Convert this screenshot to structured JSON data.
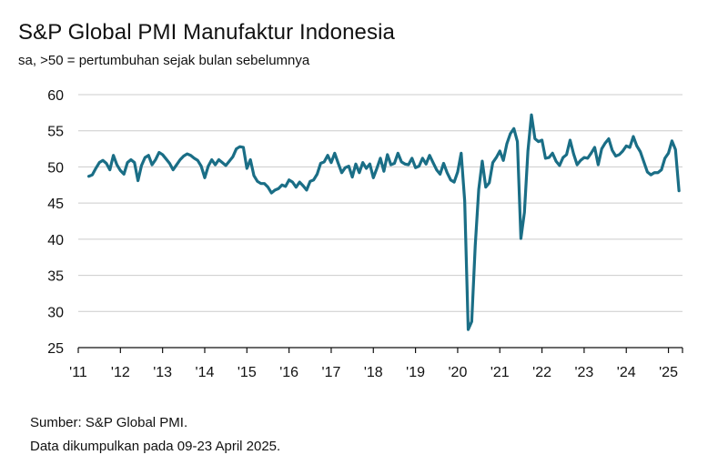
{
  "title": "S&P Global PMI Manufaktur Indonesia",
  "subtitle": "sa, >50 = pertumbuhan sejak bulan sebelumnya",
  "footer": {
    "source": "Sumber: S&P Global PMI.",
    "note": "Data dikumpulkan pada 09-23 April 2025."
  },
  "chart_data": {
    "type": "line",
    "title": "S&P Global PMI Manufaktur Indonesia",
    "subtitle": "sa, >50 = pertumbuhan sejak bulan sebelumnya",
    "xlabel": "",
    "ylabel": "",
    "ylim": [
      25,
      60
    ],
    "yticks": [
      25,
      30,
      35,
      40,
      45,
      50,
      55,
      60
    ],
    "xlim": [
      "2011-01",
      "2025-05"
    ],
    "xtick_labels": [
      "'11",
      "'12",
      "'13",
      "'14",
      "'15",
      "'16",
      "'17",
      "'18",
      "'19",
      "'20",
      "'21",
      "'22",
      "'23",
      "'24",
      "'25"
    ],
    "grid": "horizontal",
    "line_color": "#1a6e86",
    "series": [
      {
        "name": "",
        "x": [
          "2011-04",
          "2011-05",
          "2011-06",
          "2011-07",
          "2011-08",
          "2011-09",
          "2011-10",
          "2011-11",
          "2011-12",
          "2012-01",
          "2012-02",
          "2012-03",
          "2012-04",
          "2012-05",
          "2012-06",
          "2012-07",
          "2012-08",
          "2012-09",
          "2012-10",
          "2012-11",
          "2012-12",
          "2013-01",
          "2013-02",
          "2013-03",
          "2013-04",
          "2013-05",
          "2013-06",
          "2013-07",
          "2013-08",
          "2013-09",
          "2013-10",
          "2013-11",
          "2013-12",
          "2014-01",
          "2014-02",
          "2014-03",
          "2014-04",
          "2014-05",
          "2014-06",
          "2014-07",
          "2014-08",
          "2014-09",
          "2014-10",
          "2014-11",
          "2014-12",
          "2015-01",
          "2015-02",
          "2015-03",
          "2015-04",
          "2015-05",
          "2015-06",
          "2015-07",
          "2015-08",
          "2015-09",
          "2015-10",
          "2015-11",
          "2015-12",
          "2016-01",
          "2016-02",
          "2016-03",
          "2016-04",
          "2016-05",
          "2016-06",
          "2016-07",
          "2016-08",
          "2016-09",
          "2016-10",
          "2016-11",
          "2016-12",
          "2017-01",
          "2017-02",
          "2017-03",
          "2017-04",
          "2017-05",
          "2017-06",
          "2017-07",
          "2017-08",
          "2017-09",
          "2017-10",
          "2017-11",
          "2017-12",
          "2018-01",
          "2018-02",
          "2018-03",
          "2018-04",
          "2018-05",
          "2018-06",
          "2018-07",
          "2018-08",
          "2018-09",
          "2018-10",
          "2018-11",
          "2018-12",
          "2019-01",
          "2019-02",
          "2019-03",
          "2019-04",
          "2019-05",
          "2019-06",
          "2019-07",
          "2019-08",
          "2019-09",
          "2019-10",
          "2019-11",
          "2019-12",
          "2020-01",
          "2020-02",
          "2020-03",
          "2020-04",
          "2020-05",
          "2020-06",
          "2020-07",
          "2020-08",
          "2020-09",
          "2020-10",
          "2020-11",
          "2020-12",
          "2021-01",
          "2021-02",
          "2021-03",
          "2021-04",
          "2021-05",
          "2021-06",
          "2021-07",
          "2021-08",
          "2021-09",
          "2021-10",
          "2021-11",
          "2021-12",
          "2022-01",
          "2022-02",
          "2022-03",
          "2022-04",
          "2022-05",
          "2022-06",
          "2022-07",
          "2022-08",
          "2022-09",
          "2022-10",
          "2022-11",
          "2022-12",
          "2023-01",
          "2023-02",
          "2023-03",
          "2023-04",
          "2023-05",
          "2023-06",
          "2023-07",
          "2023-08",
          "2023-09",
          "2023-10",
          "2023-11",
          "2023-12",
          "2024-01",
          "2024-02",
          "2024-03",
          "2024-04",
          "2024-05",
          "2024-06",
          "2024-07",
          "2024-08",
          "2024-09",
          "2024-10",
          "2024-11",
          "2024-12",
          "2025-01",
          "2025-02",
          "2025-03",
          "2025-04"
        ],
        "values": [
          48.7,
          48.9,
          49.8,
          50.6,
          50.9,
          50.5,
          49.6,
          51.6,
          50.3,
          49.5,
          49.0,
          50.6,
          51.0,
          50.6,
          48.1,
          50.2,
          51.3,
          51.6,
          50.3,
          51.0,
          52.0,
          51.7,
          51.1,
          50.5,
          49.6,
          50.3,
          51.0,
          51.5,
          51.8,
          51.6,
          51.2,
          50.9,
          50.1,
          48.5,
          50.1,
          51.0,
          50.3,
          51.0,
          50.6,
          50.2,
          50.8,
          51.4,
          52.5,
          52.8,
          52.7,
          49.8,
          51.0,
          48.8,
          48.0,
          47.7,
          47.7,
          47.2,
          46.4,
          46.8,
          47.0,
          47.5,
          47.3,
          48.2,
          47.9,
          47.2,
          47.9,
          47.4,
          46.8,
          48.0,
          48.2,
          49.0,
          50.5,
          50.7,
          51.6,
          50.6,
          51.9,
          50.5,
          49.2,
          49.9,
          50.1,
          48.6,
          50.4,
          49.2,
          50.6,
          49.8,
          50.4,
          48.5,
          49.8,
          51.2,
          49.4,
          51.7,
          50.3,
          50.5,
          51.9,
          50.7,
          50.4,
          50.3,
          51.2,
          49.9,
          50.1,
          51.2,
          50.4,
          51.6,
          50.6,
          49.6,
          49.0,
          50.5,
          49.2,
          48.2,
          47.9,
          49.3,
          51.9,
          45.3,
          27.5,
          28.6,
          39.1,
          46.9,
          50.8,
          47.2,
          47.8,
          50.6,
          51.3,
          52.2,
          50.9,
          53.2,
          54.6,
          55.3,
          53.5,
          40.1,
          43.7,
          52.2,
          57.2,
          53.9,
          53.5,
          53.7,
          51.2,
          51.3,
          51.9,
          50.8,
          50.2,
          51.3,
          51.7,
          53.7,
          51.8,
          50.3,
          50.9,
          51.3,
          51.2,
          51.9,
          52.7,
          50.3,
          52.5,
          53.3,
          53.9,
          52.3,
          51.5,
          51.7,
          52.2,
          52.9,
          52.7,
          54.2,
          52.9,
          52.1,
          50.7,
          49.3,
          48.9,
          49.2,
          49.2,
          49.6,
          51.2,
          51.9,
          53.6,
          52.4,
          46.7
        ]
      }
    ]
  }
}
